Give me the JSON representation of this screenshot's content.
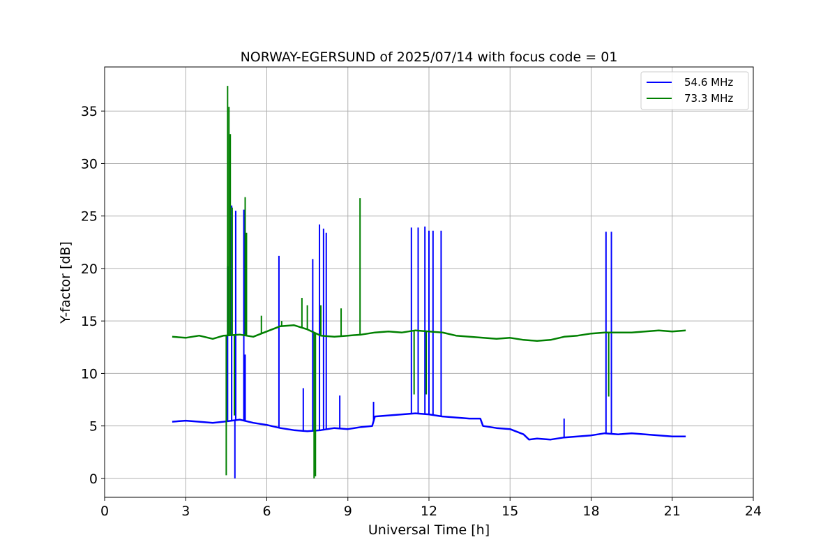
{
  "chart_data": {
    "type": "line",
    "title": "NORWAY-EGERSUND of 2025/07/14 with focus code = 01",
    "xlabel": "Universal Time [h]",
    "ylabel": "Y-factor [dB]",
    "xlim": [
      0,
      24
    ],
    "ylim": [
      -1.8,
      39.2
    ],
    "x_ticks": [
      0,
      3,
      6,
      9,
      12,
      15,
      18,
      21,
      24
    ],
    "y_ticks": [
      0,
      5,
      10,
      15,
      20,
      25,
      30,
      35
    ],
    "grid": true,
    "legend_position": "top-right",
    "series": [
      {
        "name": "54.6 MHz",
        "color": "#0000ff",
        "baseline": [
          [
            2.5,
            5.4
          ],
          [
            3.0,
            5.5
          ],
          [
            3.5,
            5.4
          ],
          [
            4.0,
            5.3
          ],
          [
            4.4,
            5.4
          ],
          [
            5.0,
            5.6
          ],
          [
            5.5,
            5.3
          ],
          [
            6.0,
            5.1
          ],
          [
            6.5,
            4.8
          ],
          [
            7.0,
            4.6
          ],
          [
            7.5,
            4.5
          ],
          [
            8.0,
            4.6
          ],
          [
            8.5,
            4.8
          ],
          [
            9.0,
            4.7
          ],
          [
            9.5,
            4.9
          ],
          [
            9.9,
            5.0
          ],
          [
            10.0,
            5.9
          ],
          [
            10.5,
            6.0
          ],
          [
            11.0,
            6.1
          ],
          [
            11.5,
            6.2
          ],
          [
            12.0,
            6.1
          ],
          [
            12.5,
            5.9
          ],
          [
            13.0,
            5.8
          ],
          [
            13.5,
            5.7
          ],
          [
            13.9,
            5.7
          ],
          [
            14.0,
            5.0
          ],
          [
            14.5,
            4.8
          ],
          [
            15.0,
            4.7
          ],
          [
            15.5,
            4.2
          ],
          [
            15.7,
            3.7
          ],
          [
            16.0,
            3.8
          ],
          [
            16.5,
            3.7
          ],
          [
            17.0,
            3.9
          ],
          [
            17.5,
            4.0
          ],
          [
            18.0,
            4.1
          ],
          [
            18.5,
            4.3
          ],
          [
            19.0,
            4.2
          ],
          [
            19.5,
            4.3
          ],
          [
            20.0,
            4.2
          ],
          [
            20.5,
            4.1
          ],
          [
            21.0,
            4.0
          ],
          [
            21.5,
            4.0
          ]
        ],
        "spikes": [
          [
            4.55,
            20.2
          ],
          [
            4.7,
            26.0
          ],
          [
            4.82,
            0.0
          ],
          [
            4.85,
            25.5
          ],
          [
            5.15,
            25.6
          ],
          [
            5.2,
            11.8
          ],
          [
            6.45,
            21.2
          ],
          [
            7.35,
            8.6
          ],
          [
            7.7,
            20.9
          ],
          [
            7.95,
            24.2
          ],
          [
            8.1,
            23.8
          ],
          [
            8.2,
            23.4
          ],
          [
            8.7,
            7.9
          ],
          [
            9.95,
            7.3
          ],
          [
            11.35,
            23.9
          ],
          [
            11.6,
            23.9
          ],
          [
            11.85,
            24.0
          ],
          [
            12.0,
            23.6
          ],
          [
            12.15,
            23.6
          ],
          [
            12.45,
            23.6
          ],
          [
            17.0,
            5.7
          ],
          [
            18.55,
            23.5
          ],
          [
            18.75,
            23.5
          ]
        ]
      },
      {
        "name": "73.3 MHz",
        "color": "#008000",
        "baseline": [
          [
            2.5,
            13.5
          ],
          [
            3.0,
            13.4
          ],
          [
            3.5,
            13.6
          ],
          [
            4.0,
            13.3
          ],
          [
            4.4,
            13.6
          ],
          [
            5.0,
            13.7
          ],
          [
            5.5,
            13.5
          ],
          [
            6.0,
            14.0
          ],
          [
            6.5,
            14.5
          ],
          [
            7.0,
            14.6
          ],
          [
            7.5,
            14.2
          ],
          [
            8.0,
            13.6
          ],
          [
            8.5,
            13.5
          ],
          [
            9.0,
            13.6
          ],
          [
            9.5,
            13.7
          ],
          [
            10.0,
            13.9
          ],
          [
            10.5,
            14.0
          ],
          [
            11.0,
            13.9
          ],
          [
            11.5,
            14.1
          ],
          [
            12.0,
            14.0
          ],
          [
            12.5,
            13.9
          ],
          [
            13.0,
            13.6
          ],
          [
            13.5,
            13.5
          ],
          [
            14.0,
            13.4
          ],
          [
            14.5,
            13.3
          ],
          [
            15.0,
            13.4
          ],
          [
            15.5,
            13.2
          ],
          [
            16.0,
            13.1
          ],
          [
            16.5,
            13.2
          ],
          [
            17.0,
            13.5
          ],
          [
            17.5,
            13.6
          ],
          [
            18.0,
            13.8
          ],
          [
            18.5,
            13.9
          ],
          [
            19.0,
            13.9
          ],
          [
            19.5,
            13.9
          ],
          [
            20.0,
            14.0
          ],
          [
            20.5,
            14.1
          ],
          [
            21.0,
            14.0
          ],
          [
            21.5,
            14.1
          ]
        ],
        "spikes": [
          [
            4.5,
            0.3
          ],
          [
            4.55,
            37.4
          ],
          [
            4.6,
            35.4
          ],
          [
            4.65,
            32.8
          ],
          [
            4.72,
            25.8
          ],
          [
            4.8,
            6.0
          ],
          [
            5.2,
            26.8
          ],
          [
            5.25,
            23.4
          ],
          [
            5.8,
            15.5
          ],
          [
            6.55,
            15.0
          ],
          [
            7.3,
            17.2
          ],
          [
            7.5,
            16.5
          ],
          [
            7.75,
            0.0
          ],
          [
            7.8,
            0.2
          ],
          [
            8.0,
            16.5
          ],
          [
            8.75,
            16.2
          ],
          [
            9.45,
            26.7
          ],
          [
            11.45,
            8.0
          ],
          [
            11.9,
            8.0
          ],
          [
            18.65,
            7.8
          ]
        ]
      }
    ]
  }
}
